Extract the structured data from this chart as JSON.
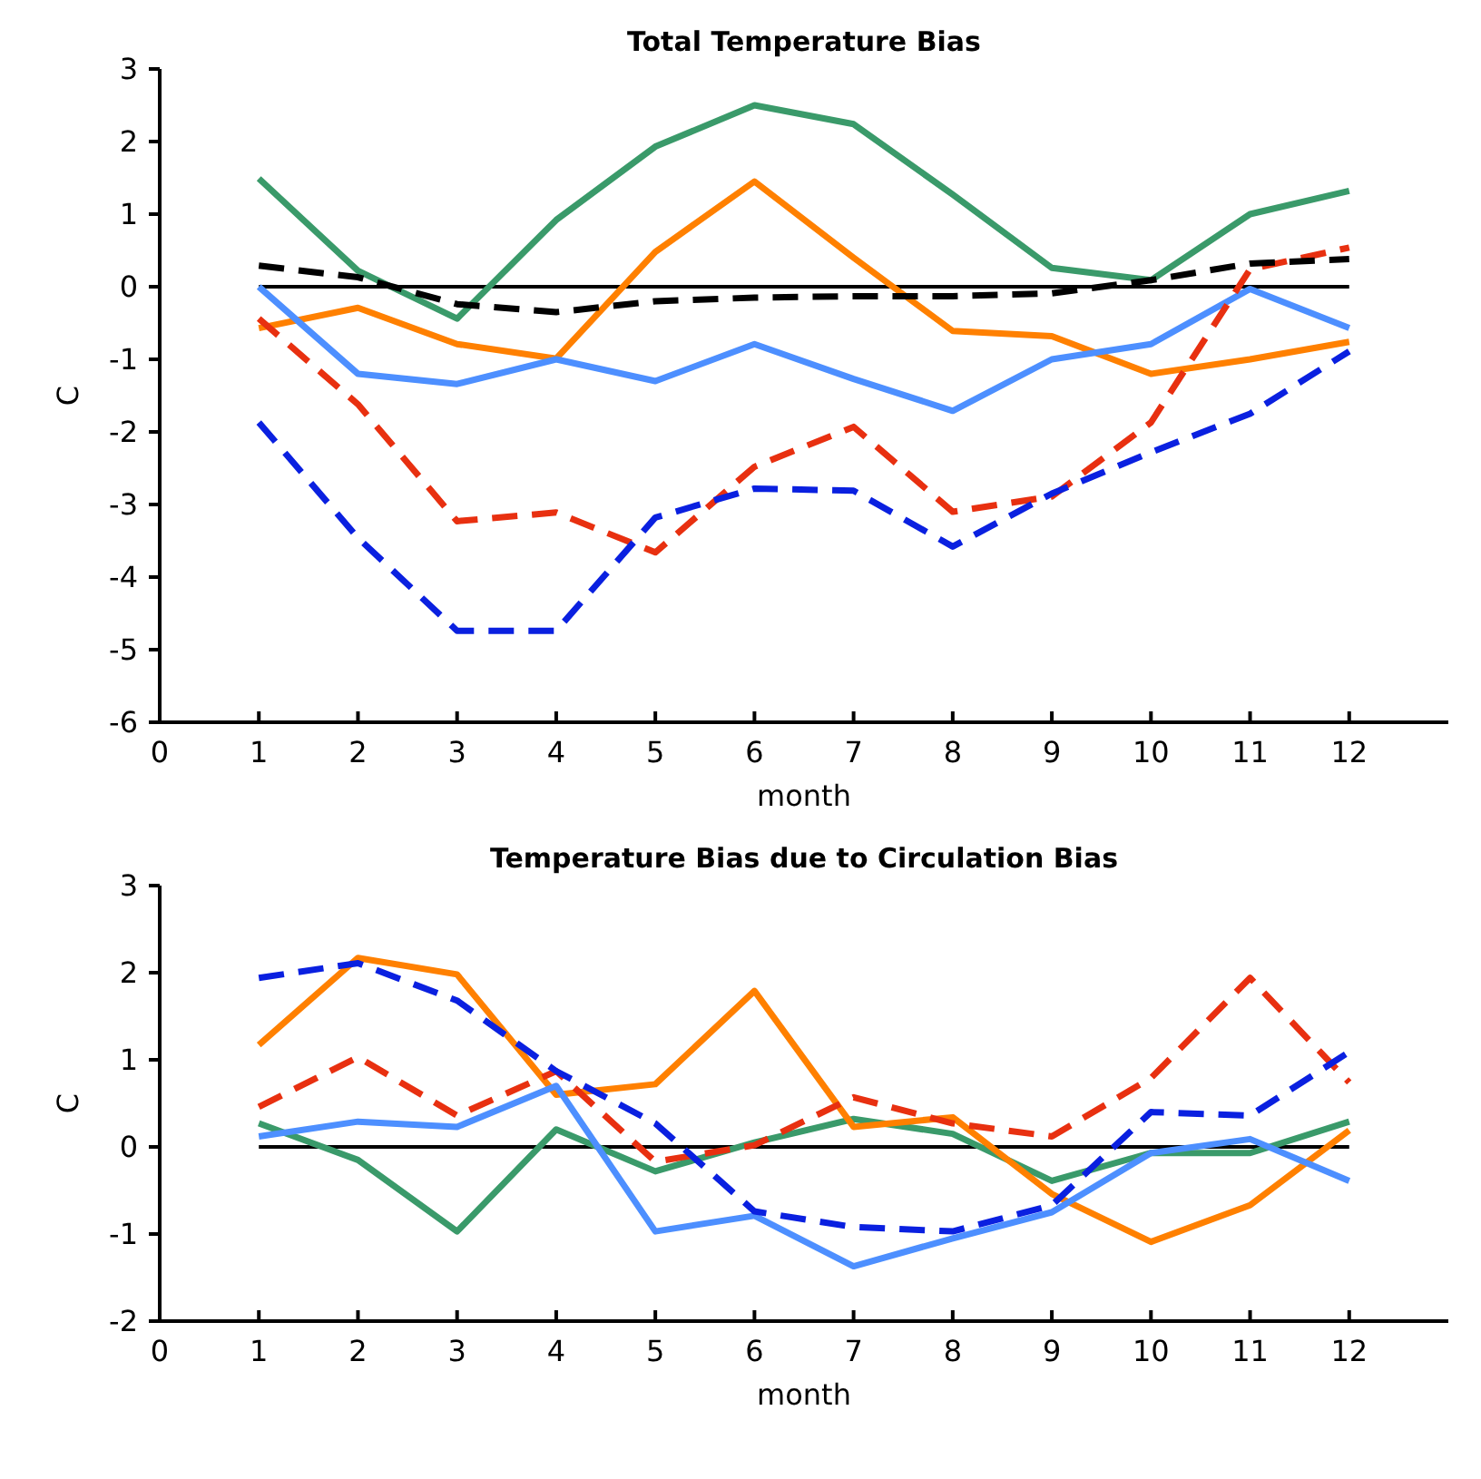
{
  "chart_data": [
    {
      "type": "line",
      "title": "Total Temperature Bias",
      "xlabel": "month",
      "ylabel": "C",
      "x": [
        1,
        2,
        3,
        4,
        5,
        6,
        7,
        8,
        9,
        10,
        11,
        12
      ],
      "xlim": [
        0,
        13
      ],
      "xticks": [
        0,
        1,
        2,
        3,
        4,
        5,
        6,
        7,
        8,
        9,
        10,
        11,
        12
      ],
      "ylim": [
        -6,
        3
      ],
      "yticks": [
        -6,
        -5,
        -4,
        -3,
        -2,
        -1,
        0,
        1,
        2,
        3
      ],
      "grid": false,
      "marker": "none",
      "ref_lines": [
        {
          "axis": "y",
          "value": 0,
          "color": "#000000"
        }
      ],
      "series": [
        {
          "color": "#3a9a6a",
          "line_style": "solid",
          "values": [
            1.49,
            0.22,
            -0.44,
            0.92,
            1.93,
            2.5,
            2.24,
            1.27,
            0.26,
            0.09,
            1.0,
            1.32
          ]
        },
        {
          "color": "#ff8000",
          "line_style": "solid",
          "values": [
            -0.57,
            -0.29,
            -0.79,
            -0.99,
            0.48,
            1.45,
            0.4,
            -0.61,
            -0.68,
            -1.2,
            -1.0,
            -0.76
          ]
        },
        {
          "color": "#4d8fff",
          "line_style": "solid",
          "values": [
            0,
            -1.2,
            -1.34,
            -1.0,
            -1.3,
            -0.79,
            -1.27,
            -1.71,
            -1.0,
            -0.79,
            -0.03,
            -0.57
          ]
        },
        {
          "color": "#e83010",
          "line_style": "dashed",
          "values": [
            -0.44,
            -1.62,
            -3.23,
            -3.11,
            -3.66,
            -2.48,
            -1.93,
            -3.1,
            -2.89,
            -1.87,
            0.24,
            0.54
          ]
        },
        {
          "color": "#0a20e0",
          "line_style": "dashed",
          "values": [
            -1.87,
            -3.46,
            -4.74,
            -4.74,
            -3.18,
            -2.78,
            -2.81,
            -3.58,
            -2.85,
            -2.28,
            -1.75,
            -0.89
          ]
        },
        {
          "color": "#000000",
          "line_style": "dashed",
          "values": [
            0.29,
            0.13,
            -0.24,
            -0.35,
            -0.2,
            -0.15,
            -0.13,
            -0.13,
            -0.09,
            0.09,
            0.32,
            0.38
          ]
        }
      ]
    },
    {
      "type": "line",
      "title": "Temperature Bias due to Circulation Bias",
      "xlabel": "month",
      "ylabel": "C",
      "x": [
        1,
        2,
        3,
        4,
        5,
        6,
        7,
        8,
        9,
        10,
        11,
        12
      ],
      "xlim": [
        0,
        13
      ],
      "xticks": [
        0,
        1,
        2,
        3,
        4,
        5,
        6,
        7,
        8,
        9,
        10,
        11,
        12
      ],
      "ylim": [
        -2,
        3
      ],
      "yticks": [
        -2,
        -1,
        0,
        1,
        2,
        3
      ],
      "grid": false,
      "marker": "none",
      "ref_lines": [
        {
          "axis": "y",
          "value": 0,
          "color": "#000000"
        }
      ],
      "series": [
        {
          "color": "#3a9a6a",
          "line_style": "solid",
          "values": [
            0.27,
            -0.15,
            -0.97,
            0.2,
            -0.28,
            0.05,
            0.32,
            0.15,
            -0.39,
            -0.07,
            -0.07,
            0.29
          ]
        },
        {
          "color": "#ff8000",
          "line_style": "solid",
          "values": [
            1.17,
            2.17,
            1.98,
            0.6,
            0.72,
            1.79,
            0.23,
            0.34,
            -0.54,
            -1.09,
            -0.67,
            0.19
          ]
        },
        {
          "color": "#4d8fff",
          "line_style": "solid",
          "values": [
            0.12,
            0.29,
            0.23,
            0.7,
            -0.97,
            -0.79,
            -1.37,
            -1.05,
            -0.75,
            -0.07,
            0.09,
            -0.39
          ]
        },
        {
          "color": "#e83010",
          "line_style": "dashed",
          "values": [
            0.46,
            1.03,
            0.36,
            0.87,
            -0.17,
            0.02,
            0.57,
            0.27,
            0.12,
            0.79,
            1.94,
            0.74
          ]
        },
        {
          "color": "#0a20e0",
          "line_style": "dashed",
          "values": [
            1.94,
            2.11,
            1.68,
            0.87,
            0.27,
            -0.74,
            -0.92,
            -0.97,
            -0.67,
            0.4,
            0.36,
            1.09
          ]
        }
      ]
    }
  ]
}
